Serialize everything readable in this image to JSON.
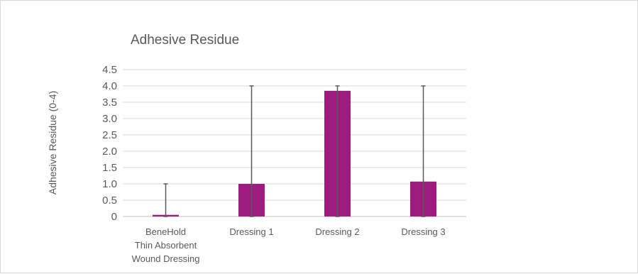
{
  "chart_data": {
    "type": "bar",
    "title": "Adhesive Residue",
    "xlabel": "",
    "ylabel": "Adhesive Residue (0-4)",
    "categories": [
      "BeneHold Thin Absorbent Wound Dressing",
      "Dressing 1",
      "Dressing 2",
      "Dressing 3"
    ],
    "category_lines": [
      [
        "BeneHold",
        "Thin Absorbent",
        "Wound Dressing"
      ],
      [
        "Dressing 1"
      ],
      [
        "Dressing 2"
      ],
      [
        "Dressing 3"
      ]
    ],
    "values": [
      0.05,
      1.0,
      3.85,
      1.07
    ],
    "error_bars": [
      {
        "low": 0,
        "high": 1
      },
      {
        "low": 0,
        "high": 4
      },
      {
        "low": 0,
        "high": 4
      },
      {
        "low": 0,
        "high": 4
      }
    ],
    "ylim": [
      0,
      4.5
    ],
    "yticks": [
      "0",
      "0.5",
      "1.0",
      "1.5",
      "2.0",
      "2.5",
      "3.0",
      "3.5",
      "4.0",
      "4.5"
    ],
    "grid": true,
    "legend": "none",
    "colors": {
      "bar": "#9e1c80",
      "error": "#595959",
      "grid": "#d9d9d9",
      "axis": "#bfbfbf",
      "text": "#595959"
    }
  }
}
